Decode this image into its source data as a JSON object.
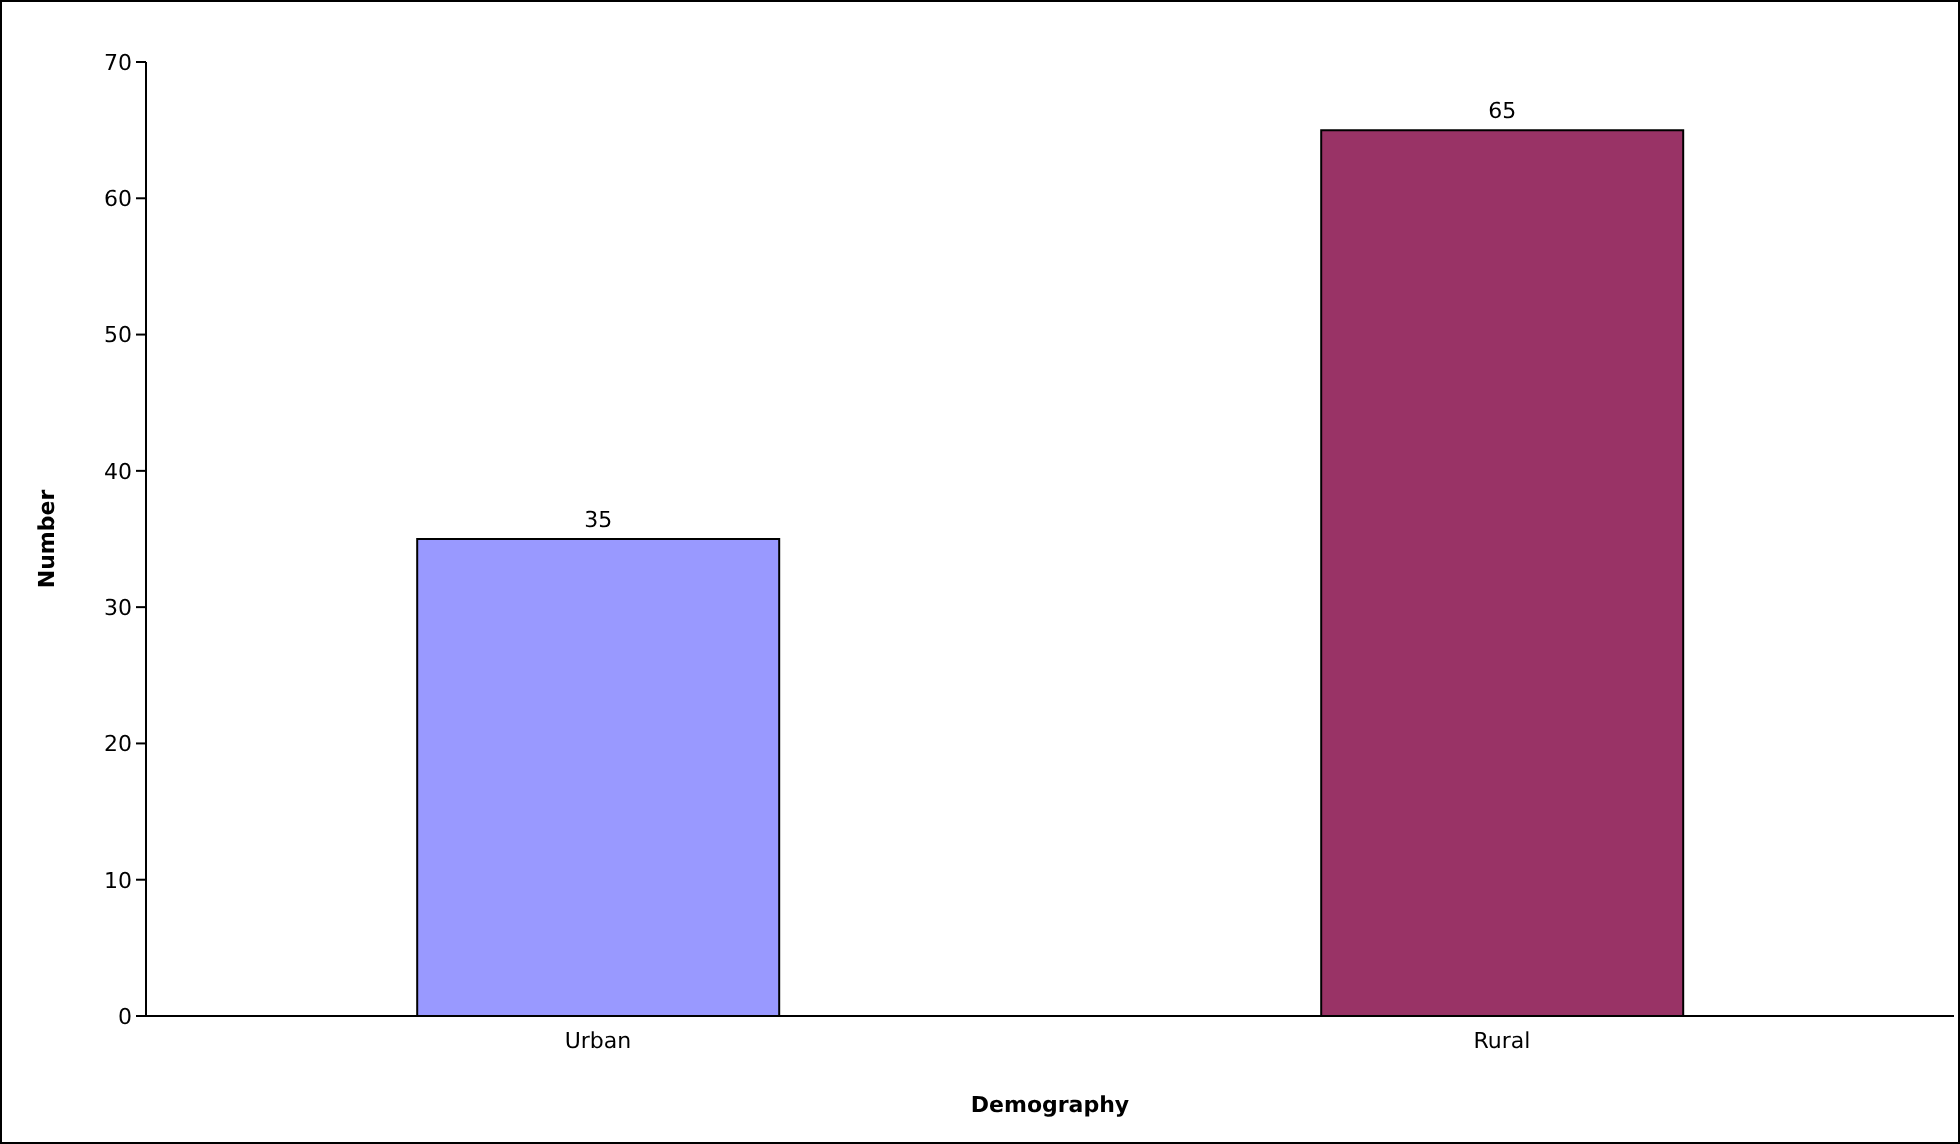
{
  "chart_data": {
    "type": "bar",
    "xlabel": "Demography",
    "ylabel": "Number",
    "categories": [
      "Urban",
      "Rural"
    ],
    "values": [
      35,
      65
    ],
    "colors": [
      "#9999ff",
      "#993366"
    ],
    "ylim": [
      0,
      70
    ],
    "yticks": [
      0,
      10,
      20,
      30,
      40,
      50,
      60,
      70
    ],
    "data_labels": true
  }
}
